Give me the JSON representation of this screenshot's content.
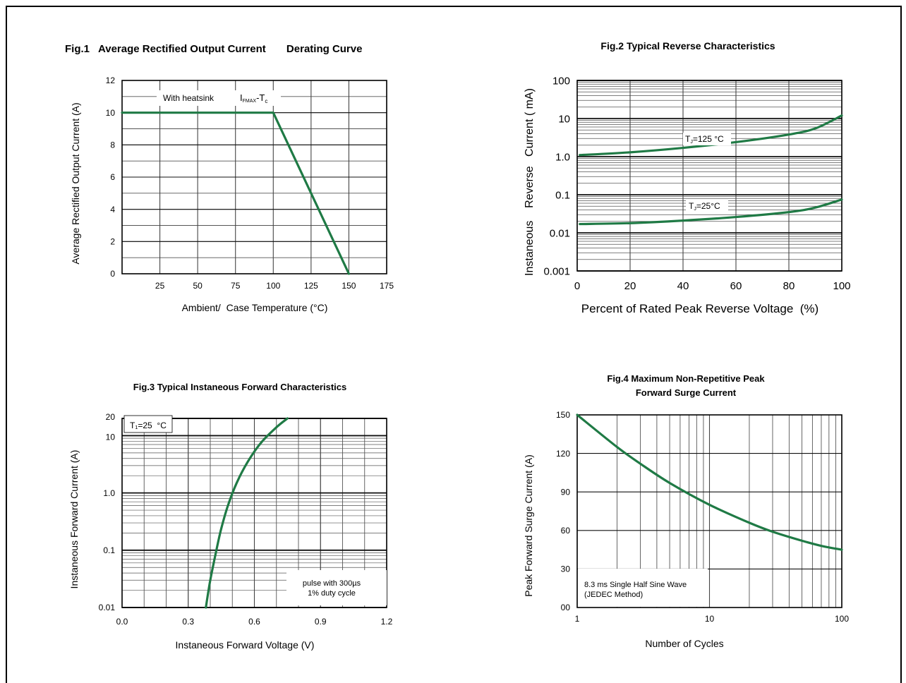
{
  "chart_data": [
    {
      "type": "line",
      "title": "Fig.1   Average Rectified Output Current       Derating Curve",
      "xlabel": "Ambient/  Case Temperature (°C)",
      "ylabel": "Average Rectified Output Current (A)",
      "xlim": [
        0,
        175
      ],
      "ylim": [
        0,
        12
      ],
      "xticks": [
        25,
        50,
        75,
        100,
        125,
        150,
        175
      ],
      "yticks": [
        0,
        2,
        4,
        6,
        8,
        10,
        12
      ],
      "xtick_labels": [
        "25",
        "50",
        "75",
        "100",
        "125",
        "150",
        "175"
      ],
      "ytick_labels": [
        "0",
        "2",
        "4",
        "6",
        "8",
        "10",
        "12"
      ],
      "grid": true,
      "annotations": {
        "heatsink": "With heatsink",
        "ifmax_main": "I",
        "ifmax_sub": "FMAX",
        "tc_main": "-T",
        "tc_sub": "c"
      },
      "series": [
        {
          "x": [
            0,
            100,
            150
          ],
          "y": [
            10,
            10,
            0
          ],
          "color": "#1f7a45"
        }
      ]
    },
    {
      "type": "line",
      "title": "Fig.2  Typical Reverse Characteristics",
      "xlabel": "Percent of Rated Peak Reverse Voltage  (%)",
      "ylabel": "Instaneous    Reverse   Current ( mA)",
      "xlim": [
        0,
        100
      ],
      "ylim": [
        0.001,
        100
      ],
      "yscale": "log",
      "xticks": [
        0,
        20,
        40,
        60,
        80,
        100
      ],
      "xtick_labels": [
        "0",
        "20",
        "40",
        "60",
        "80",
        "100"
      ],
      "yticks": [
        0.001,
        0.01,
        0.1,
        1,
        10,
        100
      ],
      "ytick_labels": [
        "0.001",
        "0.01",
        "0.1",
        "1.0",
        "10",
        "100"
      ],
      "grid": true,
      "annotations": {
        "t125_main": "T",
        "t125_sub": "J",
        "t125_rest": "=125 °C",
        "t25_main": "T",
        "t25_sub": "J",
        "t25_rest": "=25°C"
      },
      "series": [
        {
          "x": [
            1,
            20,
            40,
            60,
            80,
            90,
            100
          ],
          "y": [
            1.1,
            1.3,
            1.7,
            2.4,
            3.8,
            5.5,
            12
          ],
          "color": "#1f7a45"
        },
        {
          "x": [
            1,
            20,
            40,
            60,
            80,
            90,
            100
          ],
          "y": [
            0.017,
            0.018,
            0.021,
            0.026,
            0.035,
            0.046,
            0.075
          ],
          "color": "#1f7a45"
        }
      ]
    },
    {
      "type": "line",
      "title": "Fig.3  Typical Instaneous Forward Characteristics",
      "xlabel": "Instaneous Forward Voltage (V)",
      "ylabel": "Instaneous Forward Current (A)",
      "xlim": [
        0,
        1.2
      ],
      "ylim": [
        0.01,
        20
      ],
      "yscale": "log",
      "xticks": [
        0,
        0.3,
        0.6,
        0.9,
        1.2
      ],
      "xtick_labels": [
        "0.0",
        "0.3",
        "0.6",
        "0.9",
        "1.2"
      ],
      "yticks": [
        0.01,
        0.1,
        1,
        10,
        20
      ],
      "ytick_labels": [
        "0.01",
        "0.1",
        "1.0",
        "10",
        "20"
      ],
      "grid": true,
      "annotations": {
        "temp": "T₁=25  °C",
        "pulse1": "pulse with 300µs",
        "pulse2": "1% duty cycle"
      },
      "series": [
        {
          "x": [
            0.38,
            0.4,
            0.43,
            0.45,
            0.48,
            0.52,
            0.57,
            0.63,
            0.7,
            0.75
          ],
          "y": [
            0.01,
            0.03,
            0.11,
            0.24,
            0.6,
            1.5,
            3.5,
            7.5,
            14,
            20
          ],
          "color": "#1f7a45"
        }
      ]
    },
    {
      "type": "line",
      "title": "Fig.4  Maximum Non-Repetitive Peak",
      "subtitle": "Forward Surge Current",
      "xlabel": "Number of Cycles",
      "ylabel": "Peak Forward Surge Current (A)",
      "xlim": [
        1,
        100
      ],
      "xscale": "log",
      "ylim": [
        0,
        150
      ],
      "xticks": [
        1,
        10,
        100
      ],
      "xtick_labels": [
        "1",
        "10",
        "100"
      ],
      "yticks": [
        0,
        30,
        60,
        90,
        120,
        150
      ],
      "ytick_labels": [
        "00",
        "30",
        "60",
        "90",
        "120",
        "150"
      ],
      "grid": true,
      "annotations": {
        "note1": "8.3 ms Single Half Sine Wave",
        "note2": "(JEDEC Method)"
      },
      "series": [
        {
          "x": [
            1,
            2,
            3,
            5,
            10,
            20,
            30,
            50,
            70,
            100
          ],
          "y": [
            150,
            125,
            112,
            97,
            80,
            66,
            59,
            52,
            48,
            45
          ],
          "color": "#1f7a45"
        }
      ]
    }
  ]
}
